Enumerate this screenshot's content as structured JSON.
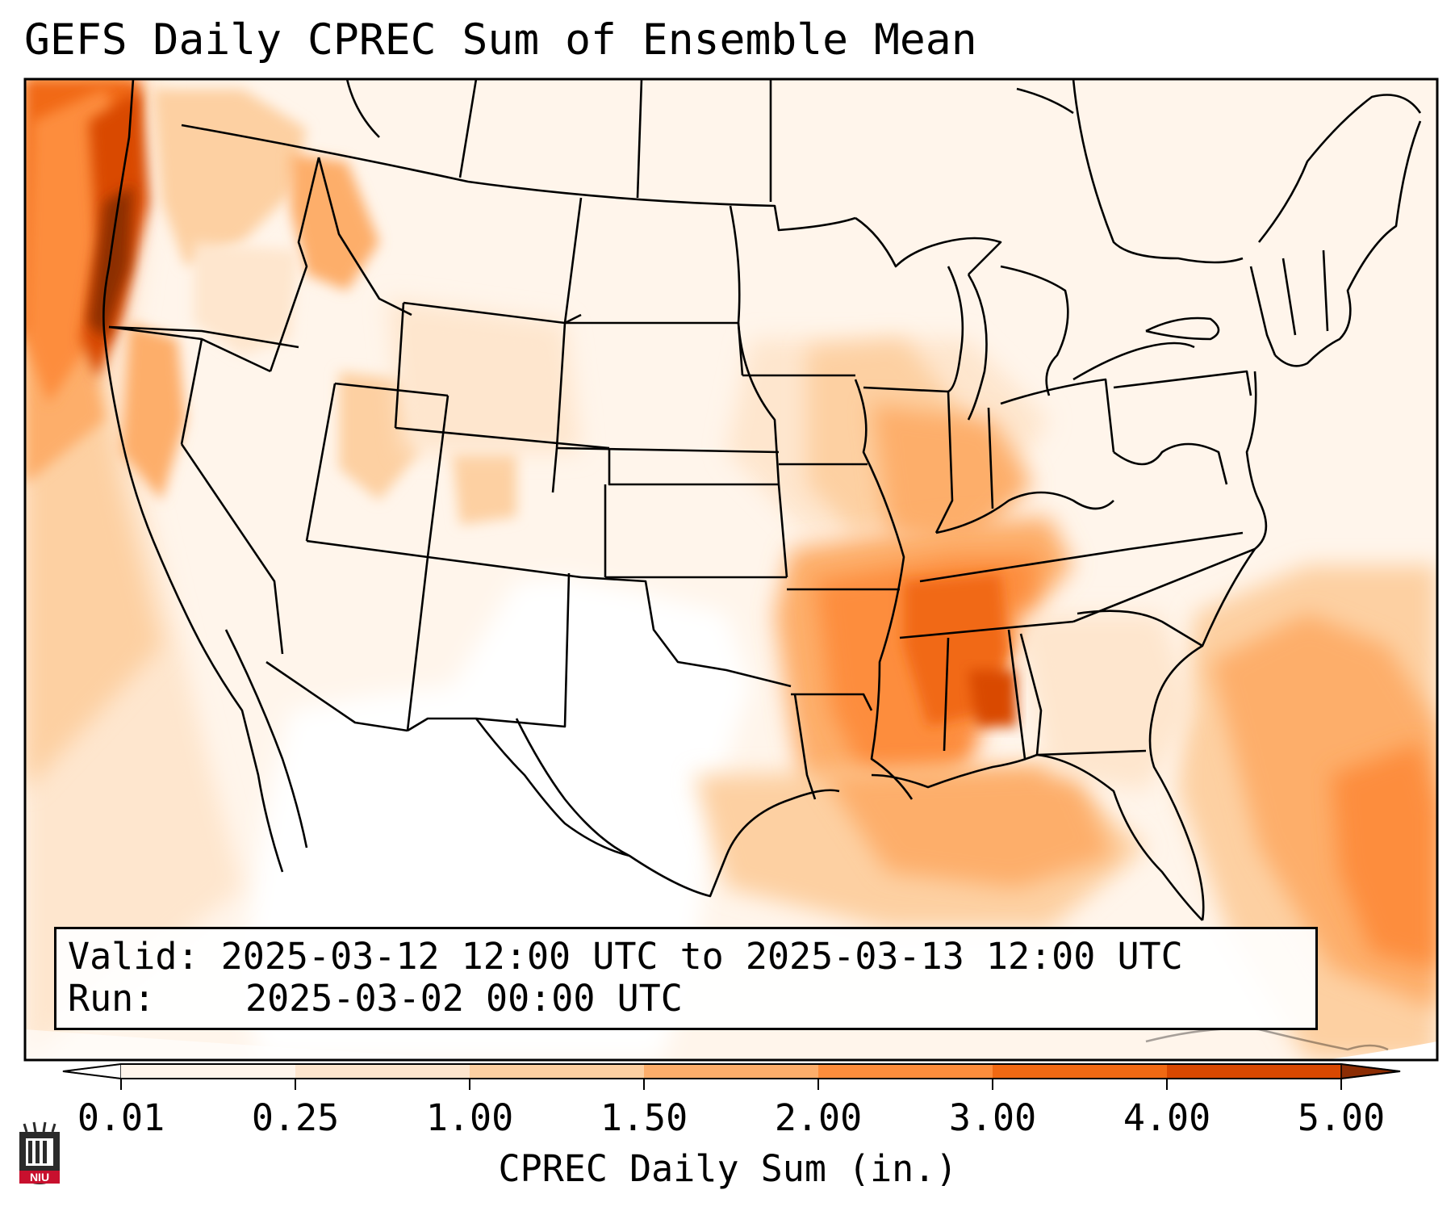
{
  "title": "GEFS Daily CPREC Sum of Ensemble Mean",
  "info": {
    "valid_label": "Valid:",
    "valid_value": "2025-03-12 12:00 UTC to 2025-03-13 12:00 UTC",
    "run_label": "Run:",
    "run_value": "2025-03-02 00:00 UTC"
  },
  "colorbar": {
    "label": "CPREC Daily Sum (in.)",
    "ticks": [
      "0.01",
      "0.25",
      "1.00",
      "1.50",
      "2.00",
      "3.00",
      "4.00",
      "5.00"
    ],
    "colors": [
      "#fff5eb",
      "#fee6ce",
      "#fdd0a2",
      "#fdae6b",
      "#fd8d3c",
      "#f16913",
      "#d94801"
    ],
    "under_color": "#ffffff",
    "over_color": "#8c2d04",
    "extend": "both"
  },
  "logo": {
    "text": "NIU",
    "color": "#c8102e"
  }
}
